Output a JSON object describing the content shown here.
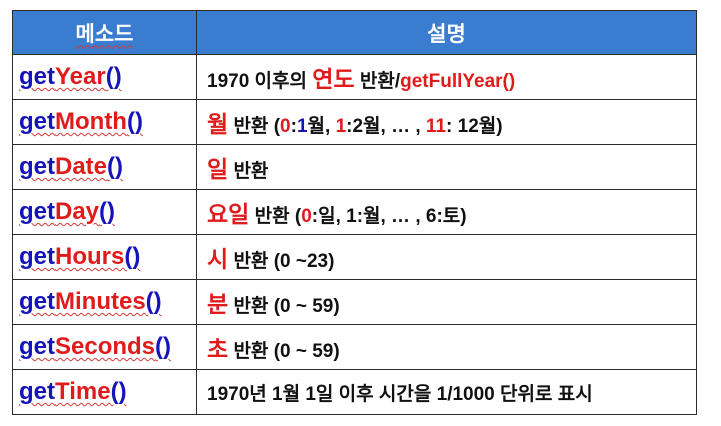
{
  "header": {
    "method": "메소드",
    "description": "설명"
  },
  "rows": [
    {
      "prefix": "get",
      "name": "Year",
      "suffix": "()",
      "desc": [
        {
          "t": "1970 이후의 ",
          "c": ""
        },
        {
          "t": "연도",
          "c": "red"
        },
        {
          "t": " 반환/",
          "c": ""
        },
        {
          "t": "getFullYear()",
          "c": "red"
        }
      ]
    },
    {
      "prefix": "get",
      "name": "Month",
      "suffix": "()",
      "desc": [
        {
          "t": "월",
          "c": "red"
        },
        {
          "t": " 반환 (",
          "c": ""
        },
        {
          "t": "0",
          "c": "red"
        },
        {
          "t": ":",
          "c": ""
        },
        {
          "t": "1",
          "c": "blue"
        },
        {
          "t": "월, ",
          "c": ""
        },
        {
          "t": "1",
          "c": "red"
        },
        {
          "t": ":2월, … , ",
          "c": ""
        },
        {
          "t": "11",
          "c": "red"
        },
        {
          "t": ": 12월)",
          "c": ""
        }
      ]
    },
    {
      "prefix": "get",
      "name": "Date",
      "suffix": "()",
      "desc": [
        {
          "t": "일",
          "c": "red"
        },
        {
          "t": " 반환",
          "c": ""
        }
      ]
    },
    {
      "prefix": "get",
      "name": "Day",
      "suffix": "()",
      "desc": [
        {
          "t": "요일",
          "c": "red"
        },
        {
          "t": " 반환 (",
          "c": ""
        },
        {
          "t": "0",
          "c": "red"
        },
        {
          "t": ":일, 1:월, … , 6:토)",
          "c": ""
        }
      ]
    },
    {
      "prefix": "get",
      "name": "Hours",
      "suffix": "()",
      "desc": [
        {
          "t": "시",
          "c": "red"
        },
        {
          "t": " 반환 (0 ~23)",
          "c": ""
        }
      ]
    },
    {
      "prefix": "get",
      "name": "Minutes",
      "suffix": "()",
      "desc": [
        {
          "t": "분",
          "c": "red"
        },
        {
          "t": " 반환 (0 ~ 59)",
          "c": ""
        }
      ]
    },
    {
      "prefix": "get",
      "name": "Seconds",
      "suffix": "()",
      "desc": [
        {
          "t": "초",
          "c": "red"
        },
        {
          "t": " 반환 (0 ~ 59)",
          "c": ""
        }
      ]
    },
    {
      "prefix": "get",
      "name": "Time",
      "suffix": "()",
      "desc": [
        {
          "t": "1970년 1월 1일 이후 시간을 1/1000 단위로 표시",
          "c": ""
        }
      ]
    }
  ],
  "colors": {
    "header_bg": "#3a7ccf",
    "method": "#1414b8",
    "highlight": "#e01b1b",
    "month_value": "#1414b8"
  }
}
